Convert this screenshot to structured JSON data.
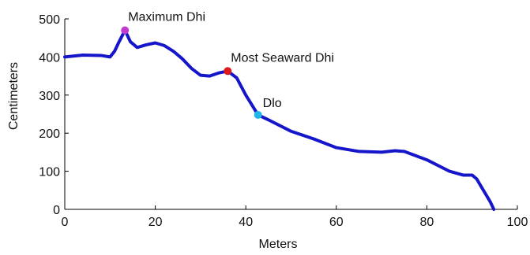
{
  "chart_data": {
    "type": "line",
    "title": "",
    "xlabel": "Meters",
    "ylabel": "Centimeters",
    "xlim": [
      0,
      100
    ],
    "ylim": [
      0,
      500
    ],
    "xticks": [
      0,
      20,
      40,
      60,
      80,
      100
    ],
    "yticks": [
      0,
      100,
      200,
      300,
      400,
      500
    ],
    "grid": false,
    "series": [
      {
        "color": "#1515c9",
        "x": [
          0,
          4,
          8,
          10,
          11,
          12,
          13.3,
          14.5,
          16,
          18,
          20,
          22,
          24,
          26,
          28,
          30,
          32,
          34,
          36,
          38,
          40,
          42.7,
          45,
          50,
          55,
          60,
          65,
          70,
          73,
          75,
          80,
          85,
          88,
          90,
          91,
          92,
          93,
          94,
          94.8
        ],
        "y": [
          400,
          405,
          404,
          400,
          415,
          440,
          470,
          440,
          425,
          432,
          437,
          430,
          415,
          395,
          370,
          352,
          350,
          358,
          363,
          345,
          300,
          248,
          235,
          205,
          185,
          162,
          152,
          150,
          154,
          152,
          130,
          100,
          90,
          90,
          80,
          60,
          40,
          20,
          0
        ]
      }
    ],
    "annotations": [
      {
        "label": "Maximum Dhi",
        "x": 13.3,
        "y": 470,
        "color": "#c13bd1"
      },
      {
        "label": "Most Seaward Dhi",
        "x": 36,
        "y": 363,
        "color": "#e0191d"
      },
      {
        "label": "Dlo",
        "x": 42.7,
        "y": 248,
        "color": "#20b6e5"
      }
    ]
  }
}
